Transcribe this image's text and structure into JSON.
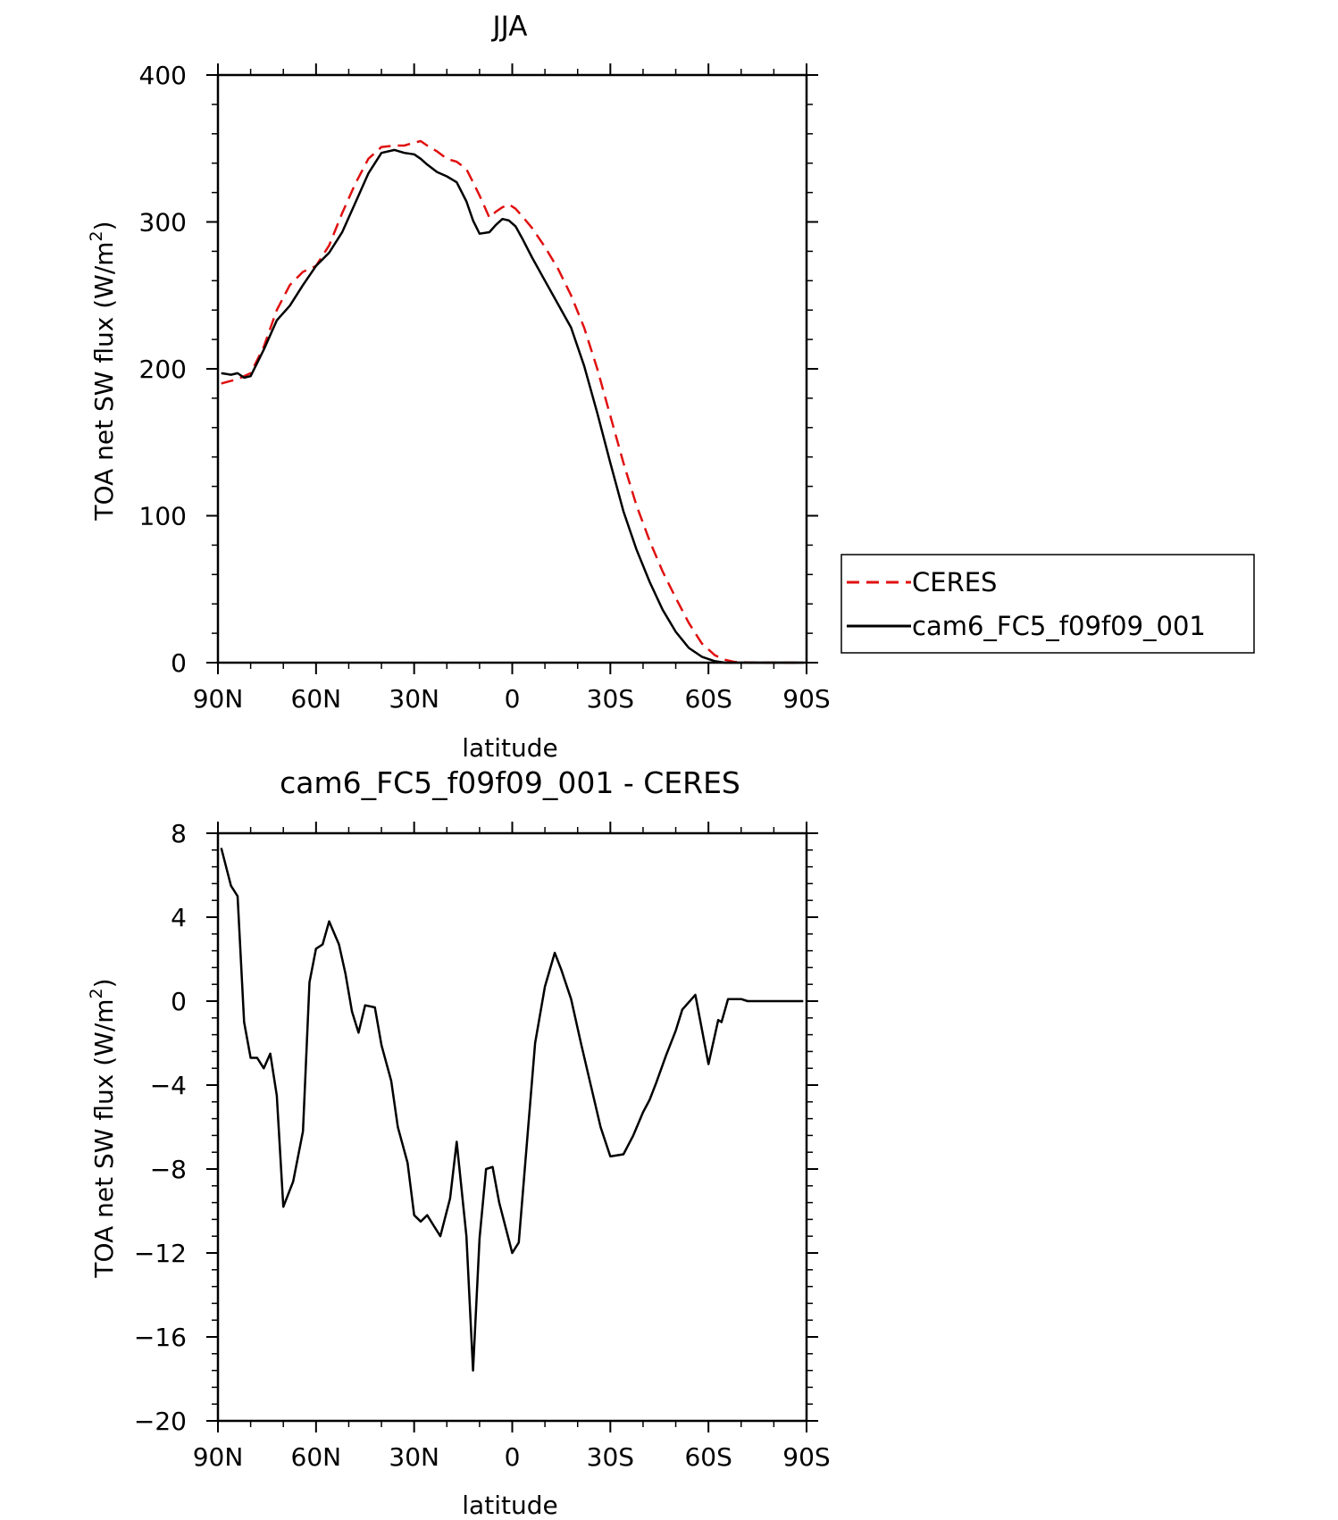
{
  "chart_data": [
    {
      "type": "line",
      "title": "JJA",
      "xlabel": "latitude",
      "ylabel": "TOA net SW flux (W/m",
      "ylabel_sup": "2",
      "ylabel_end": ")",
      "x_tick_labels": [
        "90N",
        "60N",
        "30N",
        "0",
        "30S",
        "60S",
        "90S"
      ],
      "x_tick_values": [
        90,
        60,
        30,
        0,
        -30,
        -60,
        -90
      ],
      "xlim": [
        90,
        -90
      ],
      "y_tick_labels": [
        "0",
        "100",
        "200",
        "300",
        "400"
      ],
      "y_tick_values": [
        0,
        100,
        200,
        300,
        400
      ],
      "ylim": [
        0,
        400
      ],
      "legend": {
        "placement": "right",
        "entries": [
          "CERES",
          "cam6_FC5_f09f09_001"
        ]
      },
      "series": [
        {
          "name": "CERES",
          "color": "#e01010",
          "dash": "dashed",
          "x": [
            89,
            84,
            80,
            76,
            72,
            68,
            64,
            60,
            56,
            52,
            48,
            44,
            40,
            36,
            33,
            30,
            28,
            26,
            23,
            20,
            17,
            14,
            12,
            10,
            7,
            5,
            3,
            1,
            -1,
            -3,
            -6,
            -10,
            -14,
            -18,
            -22,
            -26,
            -30,
            -34,
            -38,
            -42,
            -46,
            -50,
            -54,
            -58,
            -62,
            -65,
            -68,
            -72,
            -76,
            -80,
            -85,
            -89
          ],
          "y": [
            190,
            193,
            197,
            215,
            240,
            257,
            266,
            270,
            284,
            306,
            326,
            343,
            351,
            352,
            352,
            354,
            355,
            352,
            348,
            343,
            341,
            336,
            327,
            318,
            303,
            307,
            310,
            312,
            309,
            304,
            296,
            283,
            268,
            250,
            228,
            200,
            168,
            136,
            107,
            83,
            62,
            44,
            27,
            13,
            5,
            2,
            0.5,
            0.2,
            0,
            0,
            0,
            0
          ]
        },
        {
          "name": "cam6_FC5_f09f09_001",
          "color": "#000000",
          "dash": "solid",
          "x": [
            89,
            86,
            84,
            82,
            80,
            76,
            72,
            68,
            64,
            60,
            56,
            52,
            48,
            44,
            40,
            36,
            33,
            30,
            28,
            26,
            23,
            20,
            17,
            14,
            12,
            10,
            7,
            5,
            3,
            1,
            -1,
            -3,
            -6,
            -10,
            -14,
            -18,
            -22,
            -26,
            -30,
            -34,
            -38,
            -42,
            -46,
            -50,
            -54,
            -58,
            -62,
            -65,
            -68,
            -72,
            -76,
            -80,
            -85,
            -89
          ],
          "y": [
            197,
            196,
            197,
            194,
            195,
            213,
            233,
            243,
            257,
            270,
            279,
            293,
            313,
            333,
            347,
            349,
            347,
            346,
            343,
            339,
            334,
            331,
            327,
            314,
            301,
            292,
            293,
            298,
            302,
            301,
            297,
            289,
            276,
            260,
            244,
            228,
            202,
            170,
            136,
            103,
            77,
            55,
            36,
            21,
            10,
            4,
            1,
            0,
            0,
            0,
            0,
            0,
            0,
            0
          ]
        }
      ]
    },
    {
      "type": "line",
      "title": "cam6_FC5_f09f09_001 - CERES",
      "xlabel": "latitude",
      "ylabel": "TOA net SW flux (W/m",
      "ylabel_sup": "2",
      "ylabel_end": ")",
      "x_tick_labels": [
        "90N",
        "60N",
        "30N",
        "0",
        "30S",
        "60S",
        "90S"
      ],
      "x_tick_values": [
        90,
        60,
        30,
        0,
        -30,
        -60,
        -90
      ],
      "xlim": [
        90,
        -90
      ],
      "y_tick_labels": [
        "8",
        "4",
        "0",
        "−4",
        "−8",
        "−12",
        "−16",
        "−20"
      ],
      "y_tick_values": [
        8,
        4,
        0,
        -4,
        -8,
        -12,
        -16,
        -20
      ],
      "ylim": [
        -20,
        8
      ],
      "series": [
        {
          "color": "#000000",
          "dash": "solid",
          "x": [
            89,
            86,
            84,
            82,
            80,
            78,
            76,
            74,
            72,
            70,
            67,
            64,
            62,
            60,
            58,
            56,
            53,
            51,
            49,
            47,
            45,
            42,
            40,
            37,
            35,
            32,
            30,
            28,
            26,
            24,
            22,
            19,
            17,
            14,
            12,
            10,
            8,
            6,
            4,
            2,
            0,
            -2,
            -4,
            -7,
            -10,
            -13,
            -15,
            -18,
            -21,
            -24,
            -27,
            -30,
            -34,
            -37,
            -40,
            -42,
            -44,
            -47,
            -50,
            -52,
            -56,
            -60,
            -63,
            -64,
            -66,
            -68,
            -70,
            -72,
            -74,
            -77,
            -81,
            -85,
            -89
          ],
          "y": [
            7.3,
            5.5,
            5.0,
            -1.0,
            -2.7,
            -2.7,
            -3.2,
            -2.5,
            -4.5,
            -9.8,
            -8.6,
            -6.2,
            0.9,
            2.5,
            2.7,
            3.8,
            2.7,
            1.3,
            -0.5,
            -1.5,
            -0.2,
            -0.3,
            -2.1,
            -3.8,
            -6.0,
            -7.7,
            -10.2,
            -10.5,
            -10.2,
            -10.7,
            -11.2,
            -9.4,
            -6.7,
            -11.2,
            -17.6,
            -11.3,
            -8.0,
            -7.9,
            -9.6,
            -10.8,
            -12.0,
            -11.5,
            -7.7,
            -2.0,
            0.7,
            2.3,
            1.5,
            0.1,
            -2.0,
            -4.0,
            -6.0,
            -7.4,
            -7.3,
            -6.4,
            -5.3,
            -4.7,
            -3.9,
            -2.6,
            -1.4,
            -0.4,
            0.3,
            -3.0,
            -0.9,
            -1.0,
            0.1,
            0.1,
            0.1,
            0.0,
            0.0,
            0.0,
            0.0,
            0.0,
            0.0
          ]
        }
      ]
    }
  ]
}
